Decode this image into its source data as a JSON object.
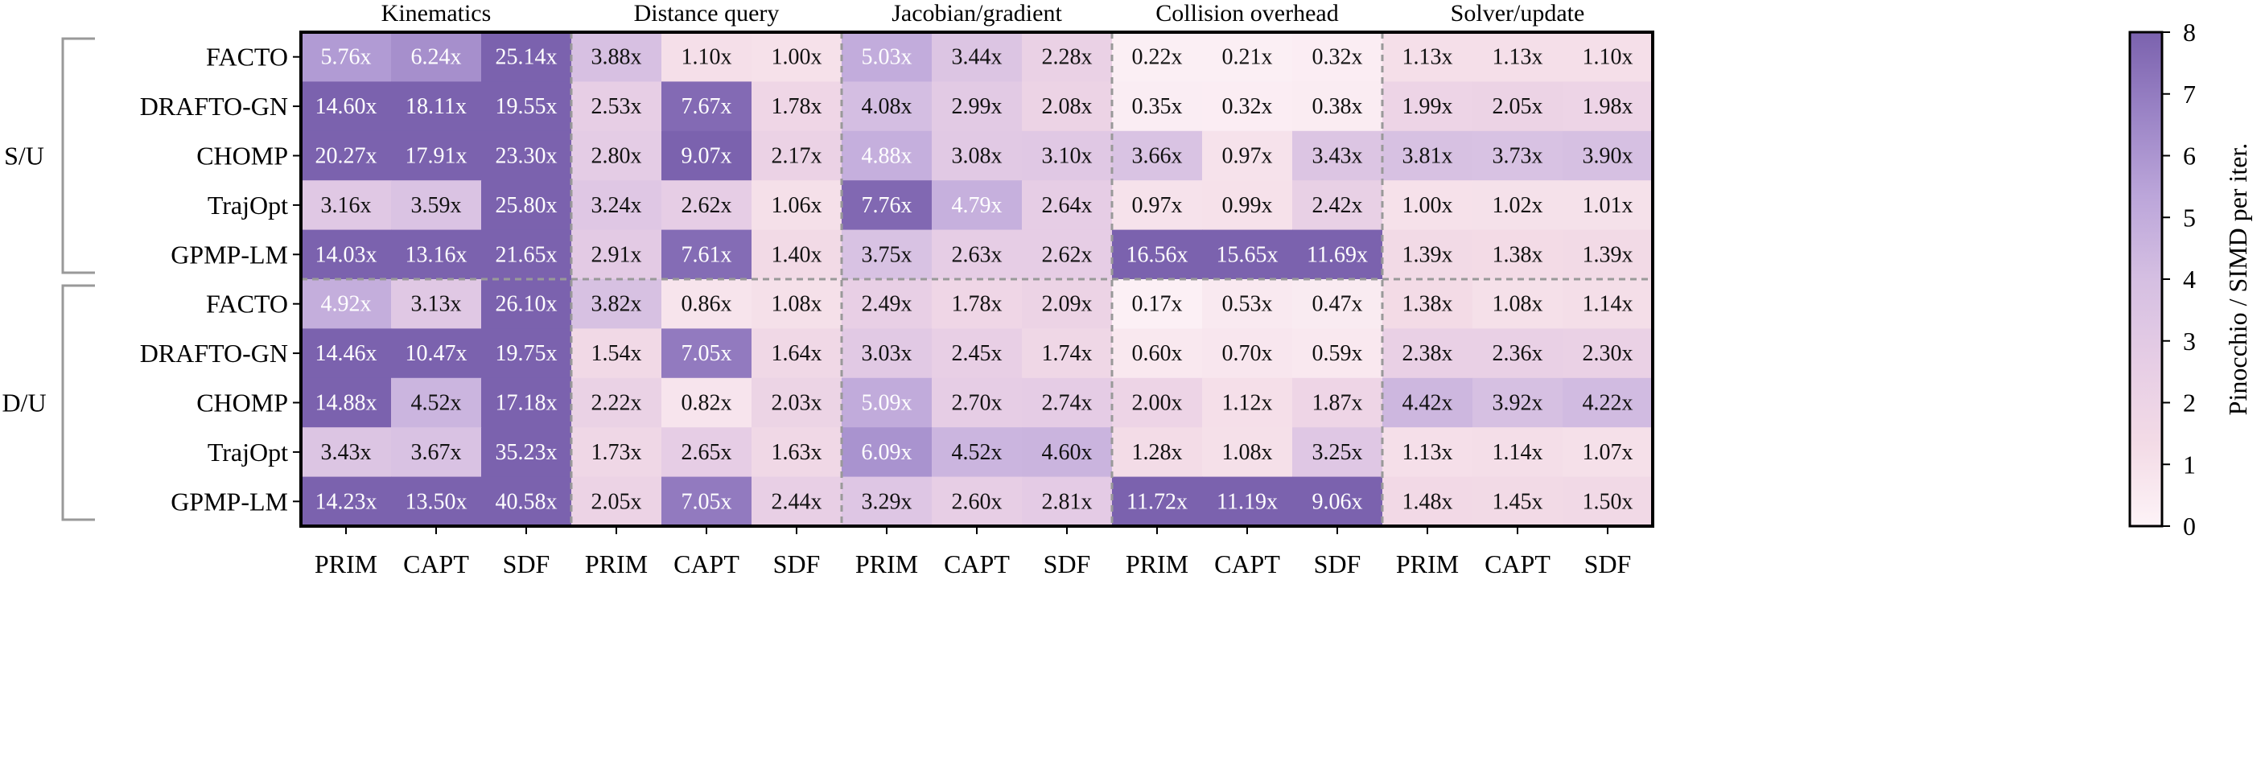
{
  "chart_data": {
    "type": "heatmap",
    "title": "",
    "group_labels": [
      "Kinematics",
      "Distance query",
      "Jacobian/gradient",
      "Collision overhead",
      "Solver/update"
    ],
    "column_labels": [
      "PRIM",
      "CAPT",
      "SDF"
    ],
    "row_groups": [
      {
        "label": "S/U",
        "rows": [
          "FACTO",
          "DRAFTO-GN",
          "CHOMP",
          "TrajOpt",
          "GPMP-LM"
        ]
      },
      {
        "label": "D/U",
        "rows": [
          "FACTO",
          "DRAFTO-GN",
          "CHOMP",
          "TrajOpt",
          "GPMP-LM"
        ]
      }
    ],
    "values": [
      [
        5.76,
        6.24,
        25.14,
        3.88,
        1.1,
        1.0,
        5.03,
        3.44,
        2.28,
        0.22,
        0.21,
        0.32,
        1.13,
        1.13,
        1.1
      ],
      [
        14.6,
        18.11,
        19.55,
        2.53,
        7.67,
        1.78,
        4.08,
        2.99,
        2.08,
        0.35,
        0.32,
        0.38,
        1.99,
        2.05,
        1.98
      ],
      [
        20.27,
        17.91,
        23.3,
        2.8,
        9.07,
        2.17,
        4.88,
        3.08,
        3.1,
        3.66,
        0.97,
        3.43,
        3.81,
        3.73,
        3.9
      ],
      [
        3.16,
        3.59,
        25.8,
        3.24,
        2.62,
        1.06,
        7.76,
        4.79,
        2.64,
        0.97,
        0.99,
        2.42,
        1.0,
        1.02,
        1.01
      ],
      [
        14.03,
        13.16,
        21.65,
        2.91,
        7.61,
        1.4,
        3.75,
        2.63,
        2.62,
        16.56,
        15.65,
        11.69,
        1.39,
        1.38,
        1.39
      ],
      [
        4.92,
        3.13,
        26.1,
        3.82,
        0.86,
        1.08,
        2.49,
        1.78,
        2.09,
        0.17,
        0.53,
        0.47,
        1.38,
        1.08,
        1.14
      ],
      [
        14.46,
        10.47,
        19.75,
        1.54,
        7.05,
        1.64,
        3.03,
        2.45,
        1.74,
        0.6,
        0.7,
        0.59,
        2.38,
        2.36,
        2.3
      ],
      [
        14.88,
        4.52,
        17.18,
        2.22,
        0.82,
        2.03,
        5.09,
        2.7,
        2.74,
        2.0,
        1.12,
        1.87,
        4.42,
        3.92,
        4.22
      ],
      [
        3.43,
        3.67,
        35.23,
        1.73,
        2.65,
        1.63,
        6.09,
        4.52,
        4.6,
        1.28,
        1.08,
        3.25,
        1.13,
        1.14,
        1.07
      ],
      [
        14.23,
        13.5,
        40.58,
        2.05,
        7.05,
        2.44,
        3.29,
        2.6,
        2.81,
        11.72,
        11.19,
        9.06,
        1.48,
        1.45,
        1.5
      ]
    ],
    "value_suffix": "x",
    "colorbar": {
      "label": "Pinocchio / SIMD per iter.",
      "range": [
        0,
        8
      ],
      "ticks": [
        0,
        1,
        2,
        3,
        4,
        5,
        6,
        7,
        8
      ],
      "colors": [
        "#fdf3f7",
        "#f3dbe6",
        "#e6cde5",
        "#d5bfe2",
        "#bca6da",
        "#9b84c6",
        "#7b62ae"
      ]
    },
    "grid": false,
    "legend": "right"
  }
}
